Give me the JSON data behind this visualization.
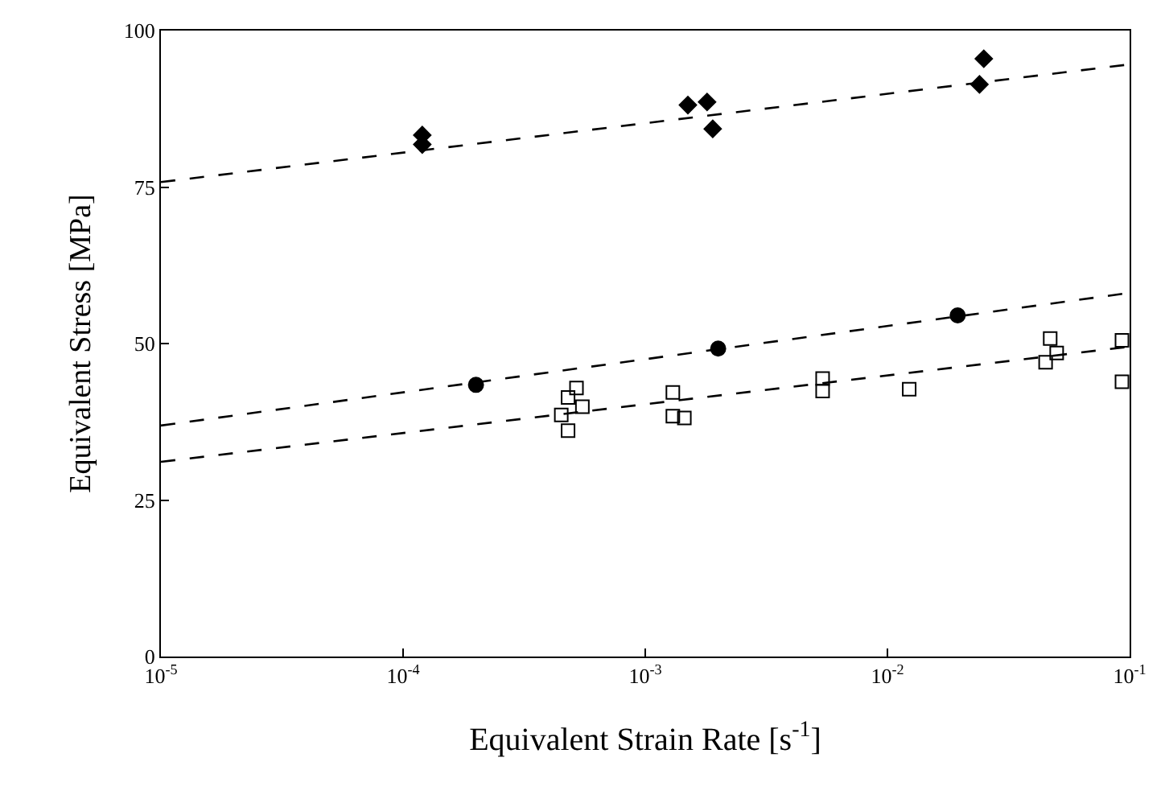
{
  "chart_data": {
    "type": "scatter",
    "xlabel": "Equivalent Strain Rate [s$^{-1}$]",
    "ylabel": "Equivalent Stress [MPa]",
    "log": "x",
    "xlim": [
      1e-05,
      0.1
    ],
    "ylim": [
      0,
      100
    ],
    "xticks": [
      {
        "value": 1e-05,
        "label": "10$^{-5}$"
      },
      {
        "value": 0.0001,
        "label": "10$^{-4}$"
      },
      {
        "value": 0.001,
        "label": "10$^{-3}$"
      },
      {
        "value": 0.01,
        "label": "10$^{-2}$"
      },
      {
        "value": 0.1,
        "label": "10$^{-1}$"
      }
    ],
    "yticks": [
      0,
      25,
      50,
      75,
      100
    ],
    "series": [
      {
        "marker": "diamond",
        "color": "#000000",
        "x": [
          0.00012,
          0.00012,
          0.0015,
          0.0018,
          0.0019,
          0.025,
          0.024
        ],
        "values": [
          83.3,
          81.8,
          88.1,
          88.6,
          84.3,
          95.5,
          91.4
        ]
      },
      {
        "type": "line",
        "marker": "none",
        "line_style": "dashed",
        "color": "#000000",
        "x": [
          1e-05,
          0.1
        ],
        "values": [
          75.8,
          94.6
        ]
      },
      {
        "marker": "circle",
        "color": "#000000",
        "x": [
          0.0002,
          0.002,
          0.0195
        ],
        "values": [
          43.4,
          49.2,
          54.5
        ]
      },
      {
        "type": "line",
        "marker": "none",
        "line_style": "dashed",
        "color": "#000000",
        "x": [
          1e-05,
          0.1
        ],
        "values": [
          36.9,
          58.1
        ]
      },
      {
        "marker": "square",
        "color": "#000000",
        "x": [
          0.00048,
          0.00045,
          0.00048,
          0.00052,
          0.00055,
          0.0013,
          0.0013,
          0.00145,
          0.0054,
          0.0054,
          0.0123,
          0.047,
          0.045,
          0.05,
          0.093,
          0.093
        ],
        "values": [
          36.1,
          38.6,
          41.4,
          42.9,
          39.9,
          42.2,
          38.4,
          38.1,
          44.4,
          42.4,
          42.7,
          50.8,
          47.0,
          48.5,
          50.5,
          43.9
        ]
      },
      {
        "type": "line",
        "marker": "none",
        "line_style": "dashed",
        "color": "#000000",
        "x": [
          1e-05,
          0.1
        ],
        "values": [
          31.1,
          49.5
        ]
      }
    ]
  }
}
